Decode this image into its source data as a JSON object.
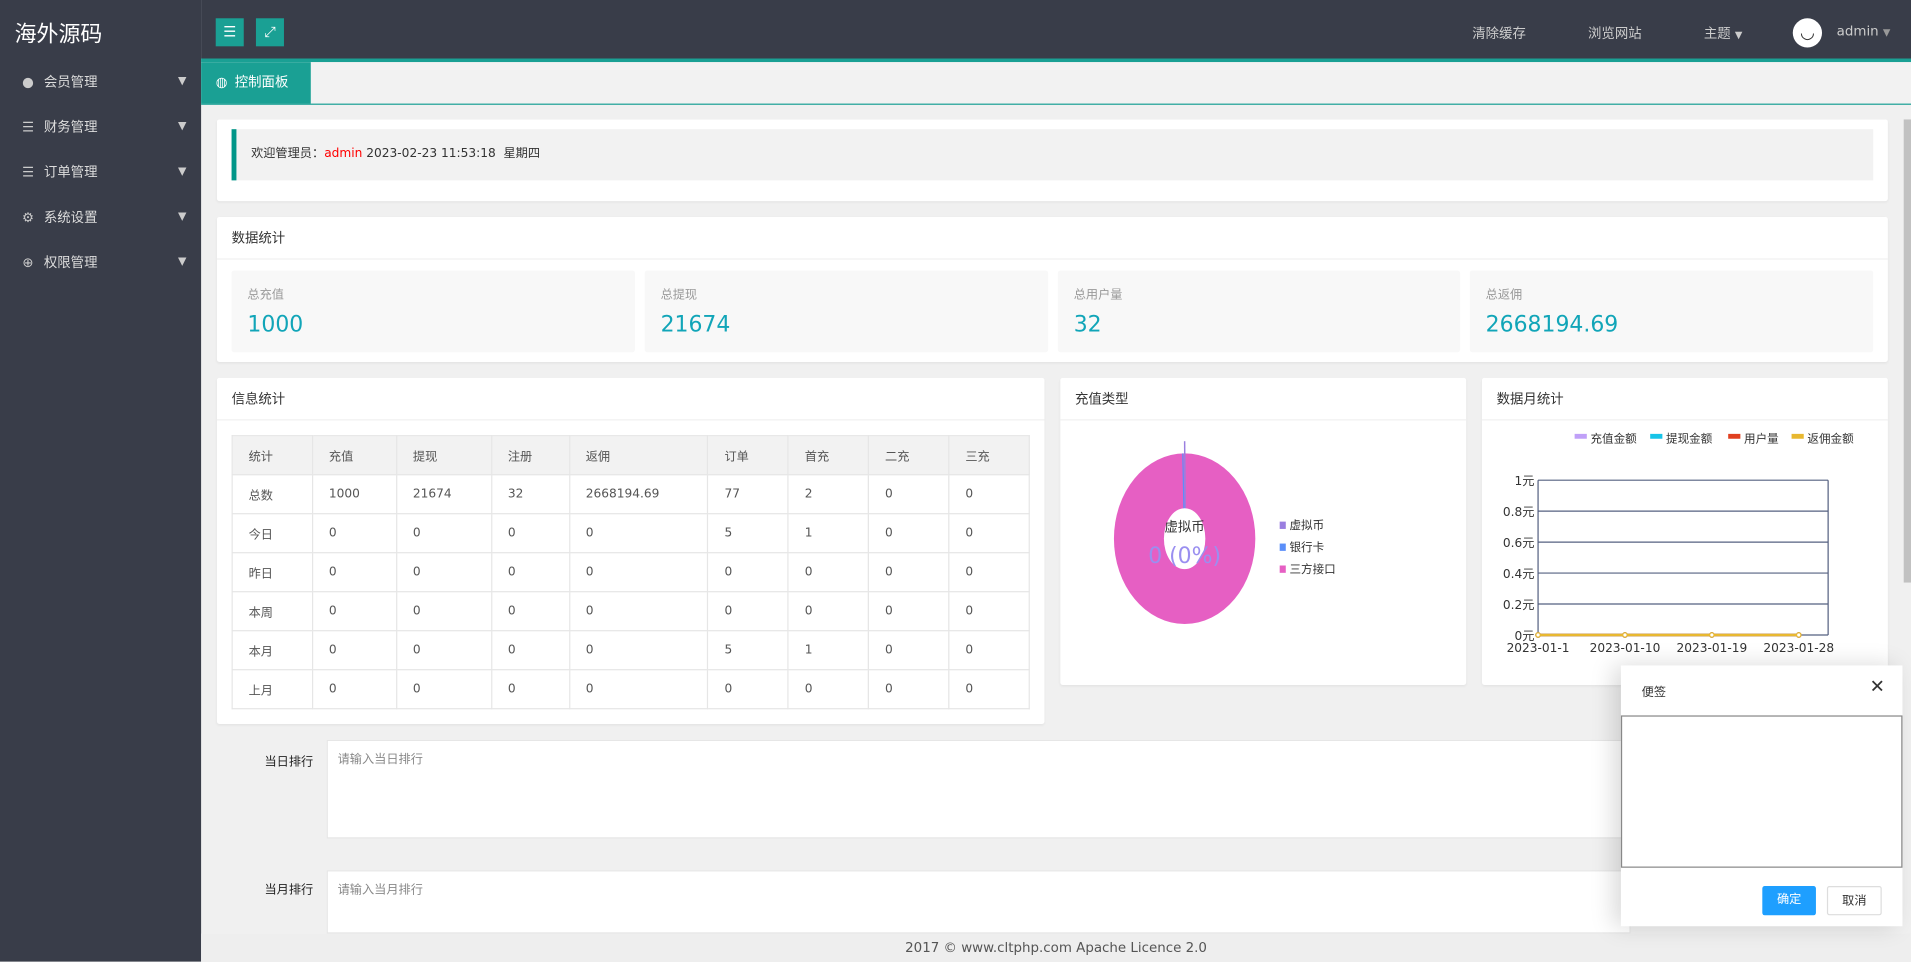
{
  "app": {
    "logo": "海外源码"
  },
  "header": {
    "clear_cache": "清除缓存",
    "browse_site": "浏览网站",
    "theme": "主题",
    "user": "admin"
  },
  "sidebar": {
    "items": [
      {
        "label": "会员管理",
        "icon": "user-icon"
      },
      {
        "label": "财务管理",
        "icon": "database-icon"
      },
      {
        "label": "订单管理",
        "icon": "database-icon"
      },
      {
        "label": "系统设置",
        "icon": "gears-icon"
      },
      {
        "label": "权限管理",
        "icon": "globe-icon"
      }
    ]
  },
  "tabs": [
    {
      "label": "控制面板",
      "icon": "globe-icon",
      "active": true
    }
  ],
  "welcome": {
    "prefix": "欢迎管理员：",
    "user": "admin",
    "datetime": "2023-02-23  11:53:18",
    "weekday": "星期四"
  },
  "stats": {
    "title": "数据统计",
    "items": [
      {
        "label": "总充值",
        "value": "1000"
      },
      {
        "label": "总提现",
        "value": "21674"
      },
      {
        "label": "总用户量",
        "value": "32"
      },
      {
        "label": "总返佣",
        "value": "2668194.69"
      }
    ]
  },
  "info": {
    "title": "信息统计",
    "columns": [
      "统计",
      "充值",
      "提现",
      "注册",
      "返佣",
      "订单",
      "首充",
      "二充",
      "三充"
    ],
    "rows": [
      [
        "总数",
        "1000",
        "21674",
        "32",
        "2668194.69",
        "77",
        "2",
        "0",
        "0"
      ],
      [
        "今日",
        "0",
        "0",
        "0",
        "0",
        "5",
        "1",
        "0",
        "0"
      ],
      [
        "昨日",
        "0",
        "0",
        "0",
        "0",
        "0",
        "0",
        "0",
        "0"
      ],
      [
        "本周",
        "0",
        "0",
        "0",
        "0",
        "0",
        "0",
        "0",
        "0"
      ],
      [
        "本月",
        "0",
        "0",
        "0",
        "0",
        "5",
        "1",
        "0",
        "0"
      ],
      [
        "上月",
        "0",
        "0",
        "0",
        "0",
        "0",
        "0",
        "0",
        "0"
      ]
    ]
  },
  "chart_data": [
    {
      "type": "pie",
      "title": "充值类型",
      "center_label": "虚拟币",
      "center_value": "0 (0%)",
      "legend_position": "right",
      "slices": [
        {
          "name": "虚拟币",
          "value": 0,
          "color": "#9a7fe0"
        },
        {
          "name": "银行卡",
          "value": 0,
          "color": "#5b8ff9"
        },
        {
          "name": "三方接口",
          "value": 0,
          "color": "#e65fc3"
        }
      ]
    },
    {
      "type": "line",
      "title": "数据月统计",
      "legend_position": "top-right",
      "grid": true,
      "x": [
        "2023-01-1",
        "2023-01-10",
        "2023-01-19",
        "2023-01-28"
      ],
      "y_ticks": [
        "0元",
        "0.2元",
        "0.4元",
        "0.6元",
        "0.8元",
        "1元"
      ],
      "ylim": [
        0,
        1
      ],
      "series": [
        {
          "name": "充值金额",
          "color": "#c0a0f8",
          "values": [
            0,
            0,
            0,
            0
          ]
        },
        {
          "name": "提现金额",
          "color": "#17c4e8",
          "values": [
            0,
            0,
            0,
            0
          ]
        },
        {
          "name": "用户量",
          "color": "#e04020",
          "values": [
            0,
            0,
            0,
            0
          ]
        },
        {
          "name": "返佣金额",
          "color": "#e8b830",
          "values": [
            0,
            0,
            0,
            0
          ]
        }
      ]
    }
  ],
  "form": {
    "daily_label": "当日排行",
    "daily_placeholder": "请输入当日排行",
    "monthly_label": "当月排行",
    "monthly_placeholder": "请输入当月排行"
  },
  "note": {
    "title": "便签",
    "ok": "确定",
    "cancel": "取消"
  },
  "footer": {
    "text": "2017 ©  www.cltphp.com  Apache Licence 2.0"
  },
  "colors": {
    "accent": "#1aa094",
    "dark": "#393d49",
    "stat_value": "#11a5b8",
    "primary_button": "#1e9fff",
    "welcome_user": "#ff0000"
  }
}
